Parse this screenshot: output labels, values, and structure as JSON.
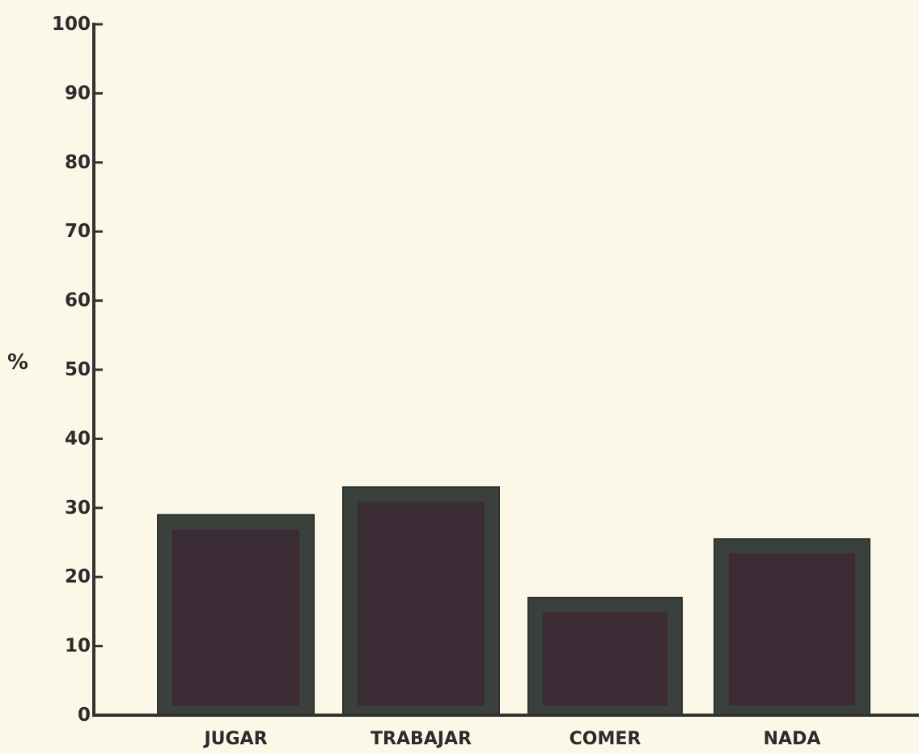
{
  "chart_data": {
    "type": "bar",
    "title": "",
    "xlabel": "",
    "ylabel": "%",
    "categories": [
      "JUGAR",
      "TRABAJAR",
      "COMER",
      "NADA"
    ],
    "values": [
      29,
      33,
      17,
      25.5
    ],
    "ylim": [
      0,
      100
    ],
    "yticks": [
      0,
      10,
      20,
      30,
      40,
      50,
      60,
      70,
      80,
      90,
      100
    ],
    "grid": false,
    "legend": "none",
    "colors": {
      "background": "#fbf8e8",
      "bar_border": "#3a403b",
      "bar_fill": "#3b2b34",
      "axis": "#333333"
    }
  }
}
